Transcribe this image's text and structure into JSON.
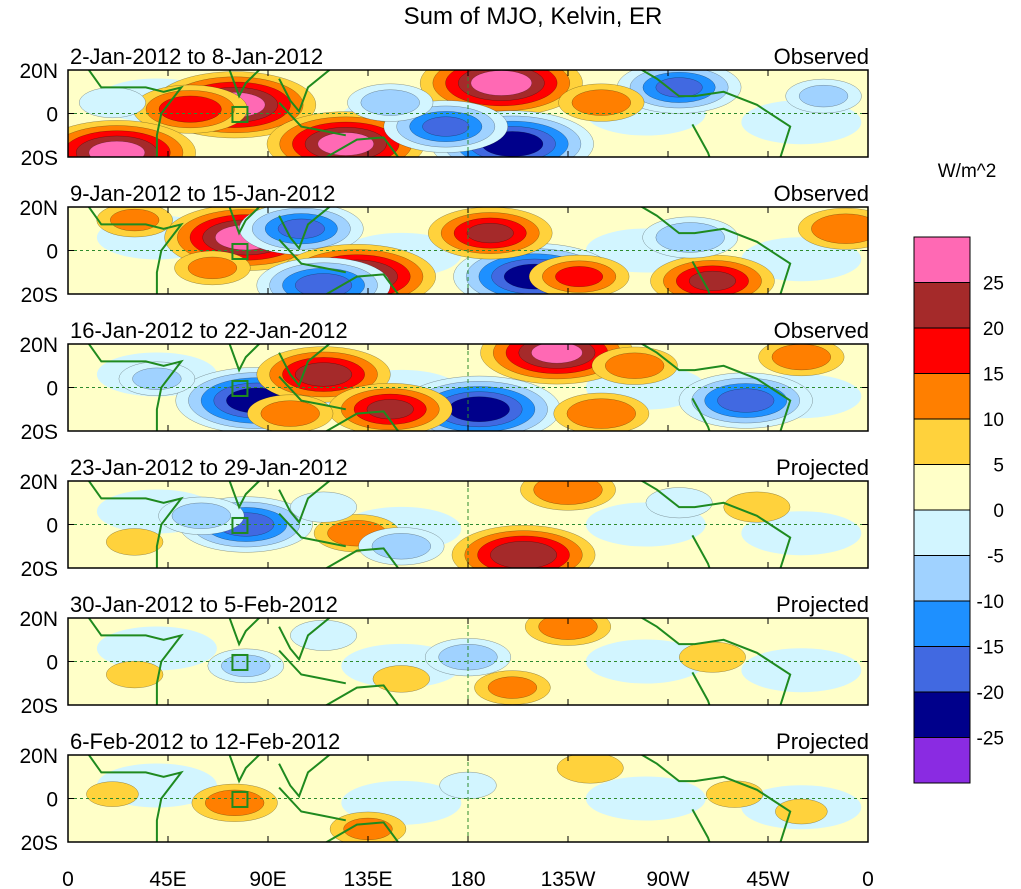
{
  "chart_data": {
    "type": "heatmap",
    "title": "Sum of MJO, Kelvin, ER",
    "units": "W/m^2",
    "x_ticks": [
      "0",
      "45E",
      "90E",
      "135E",
      "180",
      "135W",
      "90W",
      "45W",
      "0"
    ],
    "y_ticks": [
      "20N",
      "0",
      "20S"
    ],
    "x_range_deg": [
      0,
      360
    ],
    "y_range_deg": [
      -20,
      20
    ],
    "colorbar": {
      "labels": [
        "25",
        "20",
        "15",
        "10",
        "5",
        "0",
        "-5",
        "-10",
        "-15",
        "-20",
        "-25"
      ],
      "colors": [
        "#ff69b4",
        "#a52a2a",
        "#ff0000",
        "#ff7f00",
        "#ffd23c",
        "#ffffc8",
        "#d2f5ff",
        "#a0d2ff",
        "#1e90ff",
        "#4169e1",
        "#00008b",
        "#8a2be2"
      ]
    },
    "panels": [
      {
        "date_range": "2-Jan-2012 to 8-Jan-2012",
        "status": "Observed",
        "blobs": [
          {
            "lon": 75,
            "lat": 4,
            "value": 28
          },
          {
            "lon": 55,
            "lat": 2,
            "value": 18
          },
          {
            "lon": 22,
            "lat": -18,
            "value": 27
          },
          {
            "lon": 195,
            "lat": 14,
            "value": 28
          },
          {
            "lon": 125,
            "lat": -14,
            "value": 27
          },
          {
            "lon": 200,
            "lat": -14,
            "value": -28
          },
          {
            "lon": 170,
            "lat": -6,
            "value": -20
          },
          {
            "lon": 275,
            "lat": 12,
            "value": -20
          },
          {
            "lon": 145,
            "lat": 5,
            "value": -12
          },
          {
            "lon": 20,
            "lat": 5,
            "value": -8
          },
          {
            "lon": 240,
            "lat": 5,
            "value": 12
          },
          {
            "lon": 340,
            "lat": 8,
            "value": -10
          }
        ]
      },
      {
        "date_range": "9-Jan-2012 to 15-Jan-2012",
        "status": "Observed",
        "blobs": [
          {
            "lon": 80,
            "lat": 6,
            "value": 28
          },
          {
            "lon": 105,
            "lat": 10,
            "value": -20
          },
          {
            "lon": 130,
            "lat": -12,
            "value": 27
          },
          {
            "lon": 115,
            "lat": -16,
            "value": -22
          },
          {
            "lon": 210,
            "lat": -12,
            "value": -28
          },
          {
            "lon": 190,
            "lat": 8,
            "value": 20
          },
          {
            "lon": 230,
            "lat": -12,
            "value": 15
          },
          {
            "lon": 290,
            "lat": -14,
            "value": 20
          },
          {
            "lon": 280,
            "lat": 6,
            "value": -14
          },
          {
            "lon": 350,
            "lat": 10,
            "value": 14
          },
          {
            "lon": 30,
            "lat": 14,
            "value": 10
          },
          {
            "lon": 65,
            "lat": -8,
            "value": 10
          }
        ]
      },
      {
        "date_range": "16-Jan-2012 to 22-Jan-2012",
        "status": "Observed",
        "blobs": [
          {
            "lon": 85,
            "lat": -6,
            "value": -28
          },
          {
            "lon": 115,
            "lat": 6,
            "value": 22
          },
          {
            "lon": 185,
            "lat": -10,
            "value": -28
          },
          {
            "lon": 220,
            "lat": 16,
            "value": 26
          },
          {
            "lon": 305,
            "lat": -6,
            "value": -22
          },
          {
            "lon": 145,
            "lat": -10,
            "value": 20
          },
          {
            "lon": 255,
            "lat": 10,
            "value": 12
          },
          {
            "lon": 240,
            "lat": -12,
            "value": 14
          },
          {
            "lon": 330,
            "lat": 14,
            "value": 12
          },
          {
            "lon": 40,
            "lat": 4,
            "value": -10
          },
          {
            "lon": 100,
            "lat": -12,
            "value": 12
          }
        ]
      },
      {
        "date_range": "23-Jan-2012 to 29-Jan-2012",
        "status": "Projected",
        "blobs": [
          {
            "lon": 80,
            "lat": 0,
            "value": -22
          },
          {
            "lon": 60,
            "lat": 4,
            "value": -12
          },
          {
            "lon": 205,
            "lat": -14,
            "value": 24
          },
          {
            "lon": 225,
            "lat": 16,
            "value": 14
          },
          {
            "lon": 130,
            "lat": -4,
            "value": 12
          },
          {
            "lon": 150,
            "lat": -10,
            "value": -12
          },
          {
            "lon": 115,
            "lat": 8,
            "value": -8
          },
          {
            "lon": 310,
            "lat": 8,
            "value": 8
          },
          {
            "lon": 275,
            "lat": 10,
            "value": -8
          },
          {
            "lon": 30,
            "lat": -8,
            "value": 6
          }
        ]
      },
      {
        "date_range": "30-Jan-2012 to 5-Feb-2012",
        "status": "Projected",
        "blobs": [
          {
            "lon": 225,
            "lat": 16,
            "value": 12
          },
          {
            "lon": 180,
            "lat": 2,
            "value": -12
          },
          {
            "lon": 200,
            "lat": -12,
            "value": 10
          },
          {
            "lon": 115,
            "lat": 12,
            "value": -8
          },
          {
            "lon": 80,
            "lat": -2,
            "value": -10
          },
          {
            "lon": 290,
            "lat": 2,
            "value": 8
          },
          {
            "lon": 30,
            "lat": -6,
            "value": 6
          },
          {
            "lon": 150,
            "lat": -8,
            "value": 6
          }
        ]
      },
      {
        "date_range": "6-Feb-2012 to 12-Feb-2012",
        "status": "Projected",
        "blobs": [
          {
            "lon": 75,
            "lat": -2,
            "value": 12
          },
          {
            "lon": 135,
            "lat": -14,
            "value": 10
          },
          {
            "lon": 235,
            "lat": 14,
            "value": 8
          },
          {
            "lon": 300,
            "lat": 2,
            "value": 6
          },
          {
            "lon": 180,
            "lat": 6,
            "value": -6
          },
          {
            "lon": 20,
            "lat": 2,
            "value": 5
          },
          {
            "lon": 330,
            "lat": -6,
            "value": 5
          }
        ]
      }
    ]
  }
}
